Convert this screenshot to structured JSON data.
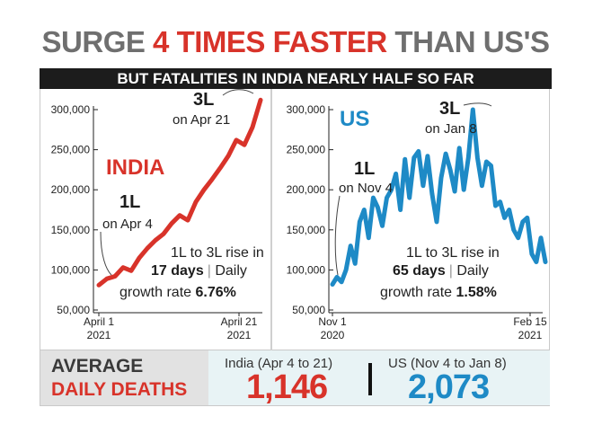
{
  "headline": {
    "part1": "SURGE ",
    "highlight": "4 TIMES FASTER",
    "part2": " THAN US'S"
  },
  "subheadline": "BUT FATALITIES IN INDIA NEARLY HALF SO FAR",
  "colors": {
    "india": "#d8332a",
    "us": "#1e8ac6",
    "highlight": "#d8332a"
  },
  "chart_data": [
    {
      "type": "line",
      "title": "INDIA",
      "yticks": [
        "300,000",
        "250,000",
        "200,000",
        "150,000",
        "100,000",
        "50,000"
      ],
      "ytick_values": [
        300000,
        250000,
        200000,
        150000,
        100000,
        50000
      ],
      "ylim": [
        50000,
        300000
      ],
      "xtick_labels": [
        {
          "line1": "April 1",
          "line2": "2021"
        },
        {
          "line1": "April 21",
          "line2": "2021"
        }
      ],
      "x": [
        1,
        2,
        3,
        4,
        5,
        6,
        7,
        8,
        9,
        10,
        11,
        12,
        13,
        14,
        15,
        16,
        17,
        18,
        19,
        20,
        21
      ],
      "values": [
        81000,
        89000,
        92000,
        103000,
        99000,
        115000,
        127000,
        137000,
        145000,
        158000,
        168000,
        162000,
        185000,
        200000,
        213000,
        227000,
        242000,
        262000,
        256000,
        278000,
        312000
      ],
      "annotations": [
        {
          "label": "1L",
          "sub": "on Apr 4"
        },
        {
          "label": "3L",
          "sub": "on Apr 21"
        }
      ],
      "note": {
        "line1": "1L to 3L rise in",
        "bold": "17 days",
        "sep": "|",
        "rest": " Daily",
        "line3": "growth rate ",
        "rate": "6.76%"
      }
    },
    {
      "type": "line",
      "title": "US",
      "yticks": [
        "300,000",
        "250,000",
        "200,000",
        "150,000",
        "100,000",
        "50,000"
      ],
      "ytick_values": [
        300000,
        250000,
        200000,
        150000,
        100000,
        50000
      ],
      "ylim": [
        50000,
        300000
      ],
      "xtick_labels": [
        {
          "line1": "Nov 1",
          "line2": "2020"
        },
        {
          "line1": "Feb 15",
          "line2": "2021"
        }
      ],
      "x": [
        1,
        2,
        3,
        4,
        5,
        6,
        7,
        8,
        9,
        10,
        11,
        12,
        13,
        14,
        15,
        16,
        17,
        18,
        19,
        20,
        21,
        22,
        23,
        24,
        25,
        26,
        27,
        28,
        29,
        30,
        31,
        32,
        33,
        34,
        35,
        36,
        37,
        38,
        39,
        40,
        41,
        42,
        43,
        44,
        45,
        46,
        47,
        48
      ],
      "values": [
        82000,
        91000,
        85000,
        100000,
        130000,
        108000,
        160000,
        175000,
        140000,
        190000,
        178000,
        155000,
        190000,
        200000,
        220000,
        175000,
        238000,
        190000,
        240000,
        248000,
        205000,
        242000,
        195000,
        160000,
        215000,
        245000,
        225000,
        198000,
        252000,
        200000,
        240000,
        300000,
        240000,
        205000,
        235000,
        230000,
        180000,
        185000,
        165000,
        175000,
        150000,
        140000,
        160000,
        165000,
        120000,
        110000,
        140000,
        110000
      ],
      "annotations": [
        {
          "label": "1L",
          "sub": "on Nov 4"
        },
        {
          "label": "3L",
          "sub": "on Jan 8"
        }
      ],
      "note": {
        "line1": "1L to 3L rise in",
        "bold": "65 days",
        "sep": "|",
        "rest": " Daily",
        "line3": "growth rate ",
        "rate": "1.58%"
      }
    }
  ],
  "summary": {
    "title_line1": "AVERAGE",
    "title_line2": "DAILY DEATHS",
    "india_label": "India (Apr 4 to 21)",
    "india_value": "1,146",
    "us_label": "US (Nov 4 to Jan 8)",
    "us_value": "2,073"
  }
}
